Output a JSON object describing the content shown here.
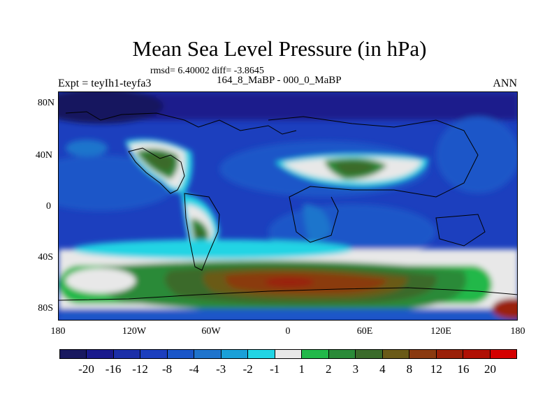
{
  "title": "Mean Sea Level Pressure (in hPa)",
  "stats": "rmsd= 6.40002 diff= -3.8645",
  "left_label": "Expt = teyIh1-teyfa3",
  "center_label": "164_8_MaBP - 000_0_MaBP",
  "right_label": "ANN",
  "y_ticks": [
    "80N",
    "40N",
    "0",
    "40S",
    "80S"
  ],
  "x_ticks": [
    "180",
    "120W",
    "60W",
    "0",
    "60E",
    "120E",
    "180"
  ],
  "colorbar": {
    "labels": [
      "-20",
      "-16",
      "-12",
      "-8",
      "-4",
      "-3",
      "-2",
      "-1",
      "1",
      "2",
      "3",
      "4",
      "8",
      "12",
      "16",
      "20"
    ],
    "colors": [
      "#18185f",
      "#1a1a8c",
      "#1c2fa8",
      "#1c3fbe",
      "#1a56c8",
      "#1f74cc",
      "#1aa0d8",
      "#22d4e4",
      "#e8e8e8",
      "#22b84a",
      "#2a8a38",
      "#3a6a2a",
      "#6a5a18",
      "#8a3a10",
      "#9a2008",
      "#b01004",
      "#d40000"
    ]
  }
}
